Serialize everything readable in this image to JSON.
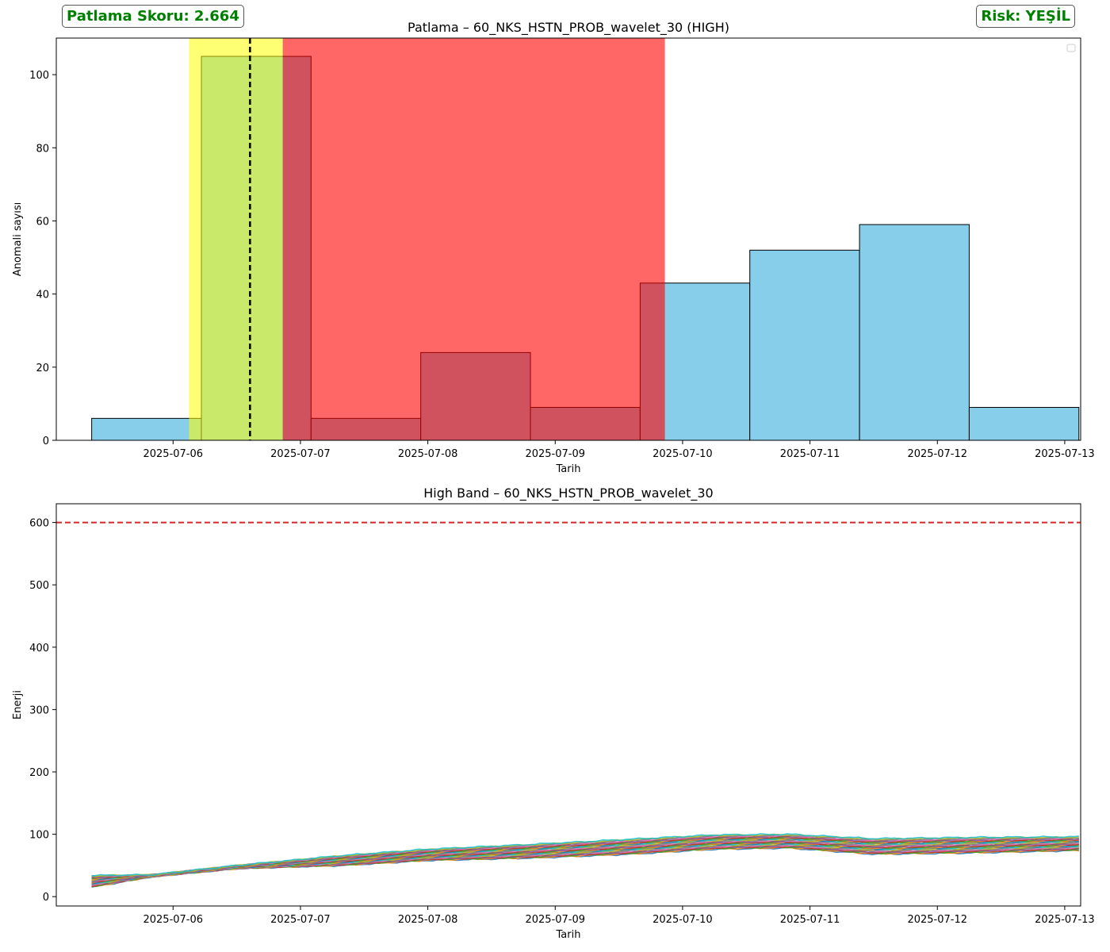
{
  "badges": {
    "score_text": "Patlama Skoru: 2.664",
    "risk_text": "Risk: YEŞİL",
    "color": "#008000"
  },
  "colors": {
    "bar_fill": "#87ceeb",
    "bar_edge": "#000000",
    "yellow_span": "#ffff00",
    "red_span": "#ff0000",
    "vline": "#000000",
    "threshold": "#d62728",
    "series_palette": [
      "#1f77b4",
      "#ff7f0e",
      "#2ca02c",
      "#d62728",
      "#9467bd",
      "#8c564b",
      "#e377c2",
      "#7f7f7f",
      "#bcbd22",
      "#17becf"
    ]
  },
  "chart_data": [
    {
      "type": "bar",
      "title": "Patlama – 60_NKS_HSTN_PROB_wavelet_30 (HIGH)",
      "xlabel": "Tarih",
      "ylabel": "Anomali sayısı",
      "x_ticks": [
        "2025-07-06",
        "2025-07-07",
        "2025-07-08",
        "2025-07-09",
        "2025-07-10",
        "2025-07-11",
        "2025-07-12",
        "2025-07-13"
      ],
      "y_ticks": [
        0,
        20,
        40,
        60,
        80,
        100
      ],
      "ylim": [
        0,
        110
      ],
      "xlim": [
        "2025-07-05T02:00",
        "2025-07-13T03:00"
      ],
      "bins": [
        {
          "start": "2025-07-05T08:40",
          "end": "2025-07-06T05:20",
          "value": 6
        },
        {
          "start": "2025-07-06T05:20",
          "end": "2025-07-07T02:00",
          "value": 105
        },
        {
          "start": "2025-07-07T02:00",
          "end": "2025-07-07T22:40",
          "value": 6
        },
        {
          "start": "2025-07-07T22:40",
          "end": "2025-07-08T19:20",
          "value": 24
        },
        {
          "start": "2025-07-08T19:20",
          "end": "2025-07-09T16:00",
          "value": 9
        },
        {
          "start": "2025-07-09T16:00",
          "end": "2025-07-10T12:40",
          "value": 43
        },
        {
          "start": "2025-07-10T12:40",
          "end": "2025-07-11T09:20",
          "value": 52
        },
        {
          "start": "2025-07-11T09:20",
          "end": "2025-07-12T06:00",
          "value": 59
        },
        {
          "start": "2025-07-12T06:00",
          "end": "2025-07-13T02:40",
          "value": 9
        }
      ],
      "spans": [
        {
          "color": "yellow",
          "start": "2025-07-06T03:00",
          "end": "2025-07-06T20:40"
        },
        {
          "color": "red",
          "start": "2025-07-06T20:40",
          "end": "2025-07-09T20:40"
        }
      ],
      "vline": "2025-07-06T14:30",
      "legend": "top-right (empty)",
      "grid": false
    },
    {
      "type": "line",
      "title": "High Band – 60_NKS_HSTN_PROB_wavelet_30",
      "xlabel": "Tarih",
      "ylabel": "Enerji",
      "x_ticks": [
        "2025-07-06",
        "2025-07-07",
        "2025-07-08",
        "2025-07-09",
        "2025-07-10",
        "2025-07-11",
        "2025-07-12",
        "2025-07-13"
      ],
      "y_ticks": [
        0,
        100,
        200,
        300,
        400,
        500,
        600
      ],
      "ylim": [
        -15,
        630
      ],
      "xlim": [
        "2025-07-05T02:00",
        "2025-07-13T03:00"
      ],
      "threshold": 600,
      "series_count": 30,
      "envelope": {
        "x": [
          "2025-07-05T08:40",
          "2025-07-05T20:00",
          "2025-07-06T12:00",
          "2025-07-07T08:00",
          "2025-07-08T00:00",
          "2025-07-08T20:00",
          "2025-07-09T14:00",
          "2025-07-10T06:00",
          "2025-07-10T20:00",
          "2025-07-11T12:00",
          "2025-07-12T06:00",
          "2025-07-13T02:40"
        ],
        "low": [
          15,
          32,
          45,
          50,
          58,
          62,
          68,
          76,
          78,
          68,
          70,
          74
        ],
        "high": [
          34,
          35,
          50,
          66,
          76,
          84,
          92,
          99,
          100,
          93,
          95,
          96
        ]
      },
      "grid": false
    }
  ]
}
